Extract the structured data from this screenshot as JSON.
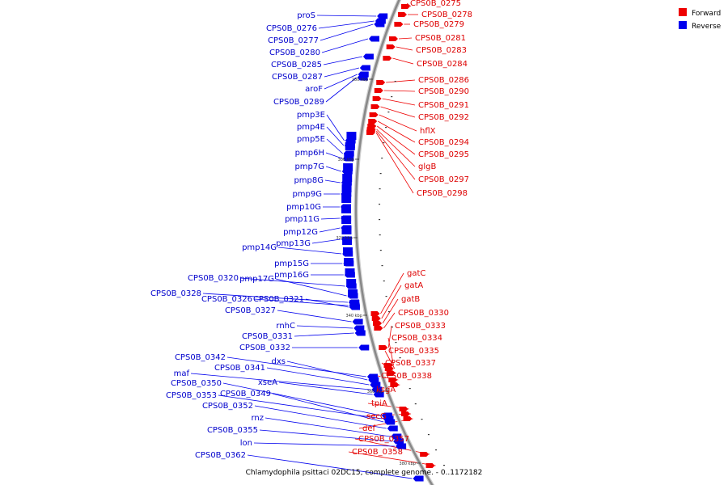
{
  "colors": {
    "forward": "#ee0000",
    "reverse": "#0000ee",
    "backbone": "#888888"
  },
  "legend": [
    {
      "label": "Forward",
      "color": "#ee0000"
    },
    {
      "label": "Reverse",
      "color": "#0000ee"
    }
  ],
  "caption": "Chlamydophila psittaci 02DC15, complete genome. - 0..1172182",
  "ticks": [
    "280 kbp",
    "300 kbp",
    "320 kbp",
    "340 kbp",
    "360 kbp",
    "380 kbp"
  ],
  "forward_genes": [
    "CPS0B_0275",
    "CPS0B_0278",
    "CPS0B_0279",
    "CPS0B_0281",
    "CPS0B_0283",
    "CPS0B_0284",
    "CPS0B_0286",
    "CPS0B_0290",
    "CPS0B_0291",
    "CPS0B_0292",
    "hflX",
    "CPS0B_0294",
    "CPS0B_0295",
    "glgB",
    "CPS0B_0297",
    "CPS0B_0298",
    "gatC",
    "gatA",
    "gatB",
    "CPS0B_0330",
    "CPS0B_0333",
    "CPS0B_0334",
    "CPS0B_0335",
    "CPS0B_0337",
    "CPS0B_0338",
    "ksgA",
    "tpiA",
    "secG",
    "def",
    "CPS0B_0357",
    "CPS0B_0358"
  ],
  "reverse_genes": [
    "proS",
    "CPS0B_0276",
    "CPS0B_0277",
    "CPS0B_0280",
    "CPS0B_0285",
    "CPS0B_0287",
    "aroF",
    "CPS0B_0289",
    "pmp3E",
    "pmp4E",
    "pmp5E",
    "pmp6H",
    "pmp7G",
    "pmp8G",
    "pmp9G",
    "pmp10G",
    "pmp11G",
    "pmp12G",
    "pmp13G",
    "pmp14G",
    "pmp15G",
    "pmp16G",
    "CPS0B_0320",
    "pmp17G",
    "CPS0B_0328",
    "CPS0B_0326",
    "CPS0B_0321",
    "CPS0B_0327",
    "rnhC",
    "CPS0B_0331",
    "CPS0B_0332",
    "CPS0B_0342",
    "dxs",
    "CPS0B_0341",
    "maf",
    "xseA",
    "CPS0B_0350",
    "CPS0B_0353",
    "CPS0B_0349",
    "CPS0B_0352",
    "rnz",
    "CPS0B_0355",
    "lon",
    "CPS0B_0362"
  ]
}
